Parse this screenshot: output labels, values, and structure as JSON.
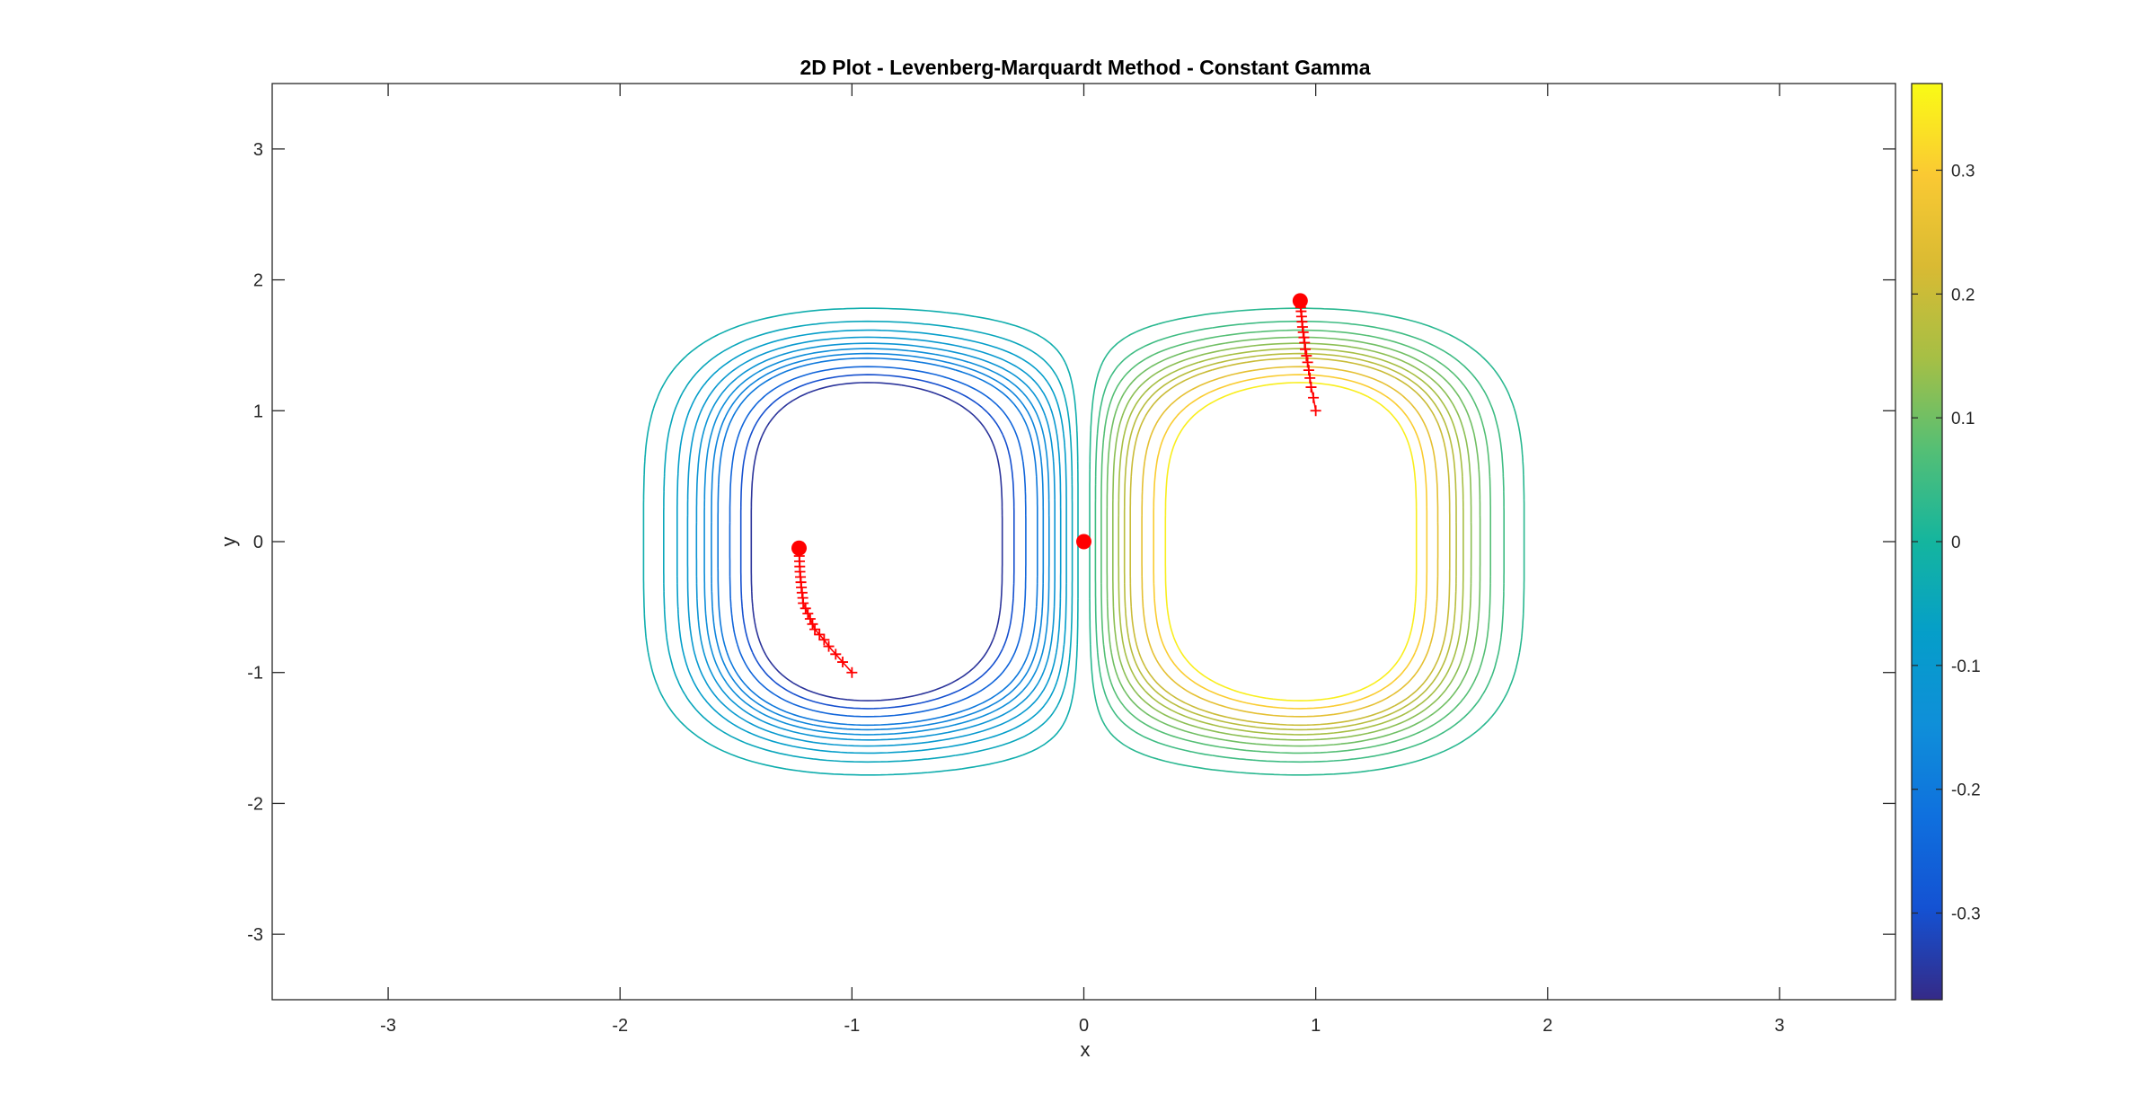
{
  "chart_data": {
    "type": "contour",
    "title": "2D Plot - Levenberg-Marquardt Method - Constant Gamma",
    "xlabel": "x",
    "ylabel": "y",
    "xlim": [
      -3.5,
      3.5
    ],
    "ylim": [
      -3.5,
      3.5
    ],
    "xticks": [
      -3,
      -2,
      -1,
      0,
      1,
      2,
      3
    ],
    "yticks": [
      -3,
      -2,
      -1,
      0,
      1,
      2,
      3
    ],
    "grid": false,
    "colormap": "parula",
    "colorbar": {
      "range": [
        -0.37,
        0.37
      ],
      "ticks": [
        -0.3,
        -0.2,
        -0.1,
        0,
        0.1,
        0.2,
        0.3
      ],
      "position": "right"
    },
    "contour_levels": [
      -0.35,
      -0.3,
      -0.25,
      -0.2,
      -0.175,
      -0.15,
      -0.125,
      -0.1,
      -0.075,
      -0.05,
      -0.025,
      0.025,
      0.05,
      0.075,
      0.1,
      0.125,
      0.15,
      0.175,
      0.2,
      0.25,
      0.3,
      0.35
    ],
    "extrema": [
      {
        "kind": "min",
        "x": -1.22,
        "y": 0,
        "value": -0.37
      },
      {
        "kind": "max",
        "x": 1.22,
        "y": 0,
        "value": 0.37
      }
    ],
    "trajectory_color": "#ff0000",
    "trajectories": [
      {
        "points": [
          [
            -1.0,
            -1.0
          ],
          [
            -1.04,
            -0.92
          ],
          [
            -1.07,
            -0.86
          ],
          [
            -1.1,
            -0.8
          ],
          [
            -1.12,
            -0.75
          ],
          [
            -1.14,
            -0.71
          ],
          [
            -1.16,
            -0.67
          ],
          [
            -1.17,
            -0.63
          ],
          [
            -1.18,
            -0.59
          ],
          [
            -1.19,
            -0.55
          ],
          [
            -1.2,
            -0.51
          ],
          [
            -1.21,
            -0.47
          ],
          [
            -1.212,
            -0.43
          ],
          [
            -1.215,
            -0.39
          ],
          [
            -1.218,
            -0.35
          ],
          [
            -1.22,
            -0.31
          ],
          [
            -1.222,
            -0.27
          ],
          [
            -1.224,
            -0.23
          ],
          [
            -1.225,
            -0.19
          ],
          [
            -1.226,
            -0.15
          ],
          [
            -1.227,
            -0.11
          ],
          [
            -1.228,
            -0.07
          ],
          [
            -1.228,
            -0.05
          ]
        ]
      },
      {
        "points": [
          [
            1.0,
            1.0
          ],
          [
            0.99,
            1.1
          ],
          [
            0.98,
            1.18
          ],
          [
            0.975,
            1.25
          ],
          [
            0.97,
            1.31
          ],
          [
            0.965,
            1.37
          ],
          [
            0.96,
            1.42
          ],
          [
            0.955,
            1.47
          ],
          [
            0.952,
            1.52
          ],
          [
            0.949,
            1.56
          ],
          [
            0.946,
            1.6
          ],
          [
            0.943,
            1.64
          ],
          [
            0.941,
            1.68
          ],
          [
            0.939,
            1.72
          ],
          [
            0.937,
            1.76
          ],
          [
            0.935,
            1.79
          ],
          [
            0.934,
            1.82
          ],
          [
            0.933,
            1.84
          ]
        ]
      },
      {
        "points": [
          [
            0,
            0
          ]
        ]
      }
    ]
  }
}
